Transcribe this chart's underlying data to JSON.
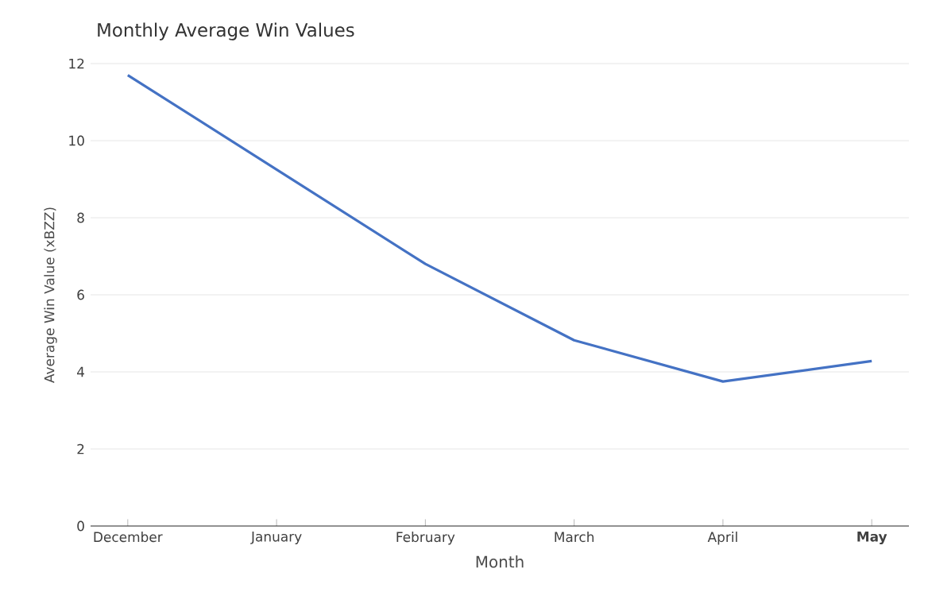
{
  "chart_data": {
    "type": "line",
    "title": "Monthly Average Win Values",
    "xlabel": "Month",
    "ylabel": "Average Win Value (xBZZ)",
    "categories": [
      "December",
      "January",
      "February",
      "March",
      "April",
      "**May**"
    ],
    "series": [
      {
        "color": "#4472c4",
        "values": [
          11.7,
          9.25,
          6.8,
          4.82,
          3.75,
          4.28
        ]
      }
    ],
    "ylim": [
      0,
      12
    ],
    "yticks": [
      0,
      2,
      4,
      6,
      8,
      10,
      12
    ],
    "grid": "y"
  }
}
